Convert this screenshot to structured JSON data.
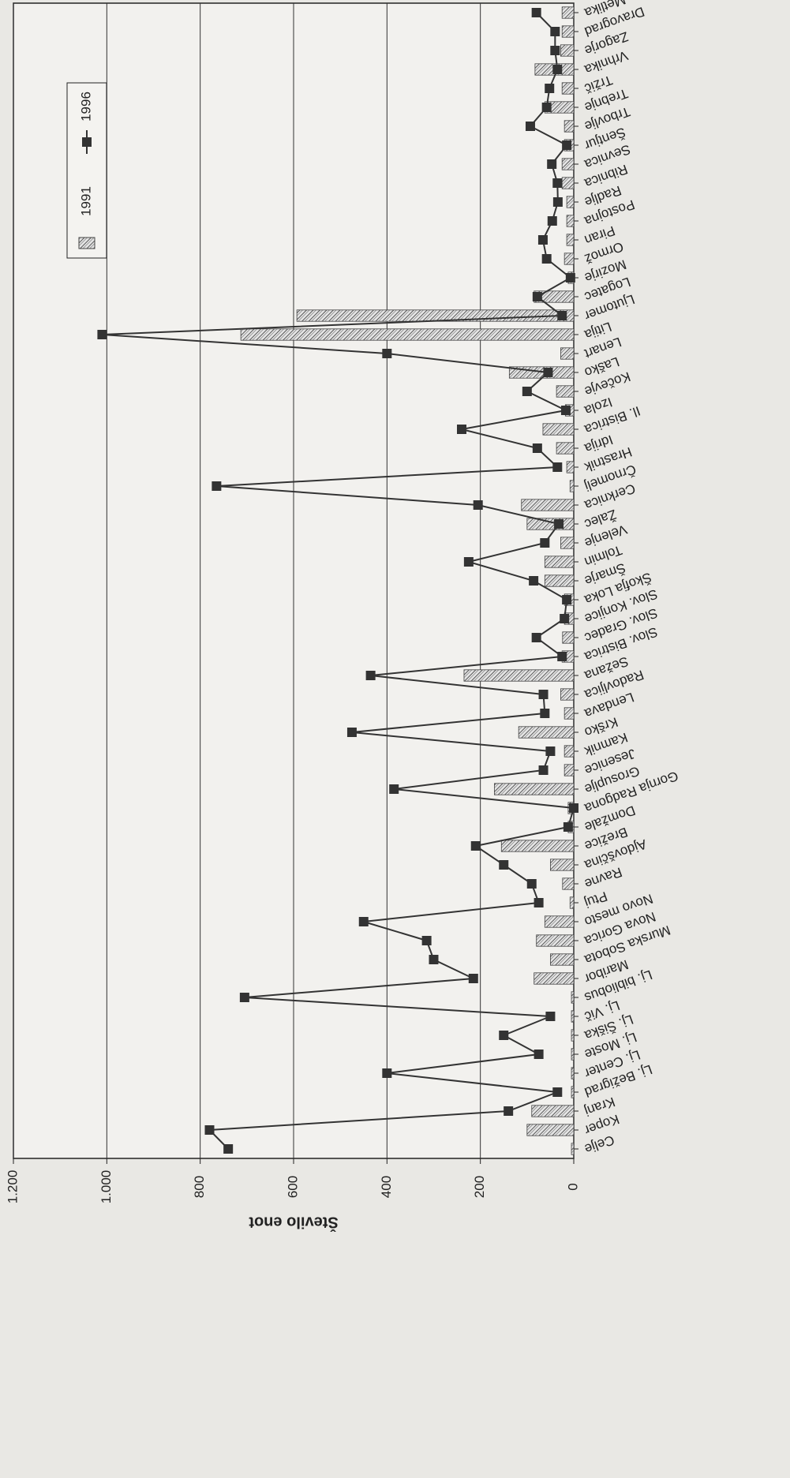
{
  "chart_data": {
    "type": "combo",
    "y_label": "Število enot",
    "categories": [
      "Celje",
      "Koper",
      "Kranj",
      "Lj. Bežigrad",
      "Lj. Center",
      "Lj. Moste",
      "Lj. Šiška",
      "Lj. Vič",
      "Lj. bibliobus",
      "Maribor",
      "Murska Sobota",
      "Nova Gorica",
      "Novo mesto",
      "Ptuj",
      "Ravne",
      "Ajdovščina",
      "Brežice",
      "Domžale",
      "Gornja Radgona",
      "Grosuplje",
      "Jesenice",
      "Kamnik",
      "Krško",
      "Lendava",
      "Radovljica",
      "Sežana",
      "Slov. Bistrica",
      "Slov. Gradec",
      "Slov. Konjice",
      "Škofja Loka",
      "Šmarje",
      "Tolmin",
      "Velenje",
      "Žalec",
      "Cerknica",
      "Črnomelj",
      "Hrastnik",
      "Idrija",
      "Il. Bistrica",
      "Izola",
      "Kočevje",
      "Laško",
      "Lenart",
      "Litija",
      "Ljutomer",
      "Logatec",
      "Mozirje",
      "Ormož",
      "Piran",
      "Postojna",
      "Radlje",
      "Ribnica",
      "Sevnica",
      "Šentjur",
      "Trbovlje",
      "Trebnje",
      "Tržič",
      "Vrhnika",
      "Zagorje",
      "Dravograd",
      "Metlika"
    ],
    "series": [
      {
        "name": "1991",
        "type": "bar",
        "color": "#b8b8b8",
        "values": [
          5,
          100,
          90,
          5,
          5,
          5,
          5,
          5,
          5,
          85,
          50,
          80,
          62,
          8,
          24,
          50,
          155,
          12,
          12,
          170,
          20,
          20,
          118,
          20,
          28,
          235,
          25,
          24,
          20,
          20,
          62,
          62,
          28,
          100,
          112,
          8,
          15,
          37,
          66,
          18,
          37,
          138,
          28,
          713,
          593,
          85,
          12,
          20,
          15,
          15,
          15,
          25,
          25,
          20,
          20,
          62,
          25,
          83,
          28,
          25,
          25
        ]
      },
      {
        "name": "1996",
        "type": "line",
        "color": "#333333",
        "values": [
          740,
          780,
          140,
          35,
          400,
          75,
          150,
          50,
          705,
          215,
          300,
          315,
          450,
          75,
          90,
          150,
          210,
          12,
          0,
          385,
          65,
          50,
          475,
          62,
          65,
          435,
          25,
          80,
          20,
          15,
          86,
          225,
          62,
          32,
          205,
          765,
          35,
          78,
          240,
          17,
          100,
          55,
          400,
          1010,
          25,
          78,
          7,
          58,
          66,
          46,
          34,
          35,
          47,
          15,
          93,
          58,
          52,
          35,
          40,
          40,
          80
        ]
      }
    ],
    "ylim": [
      0,
      1200
    ],
    "yticks": [
      0,
      200,
      400,
      600,
      800,
      {
        "value": 1000,
        "label": "1.000"
      },
      {
        "value": 1200,
        "label": "1.200"
      }
    ],
    "grid": true,
    "legend": "upper right"
  }
}
